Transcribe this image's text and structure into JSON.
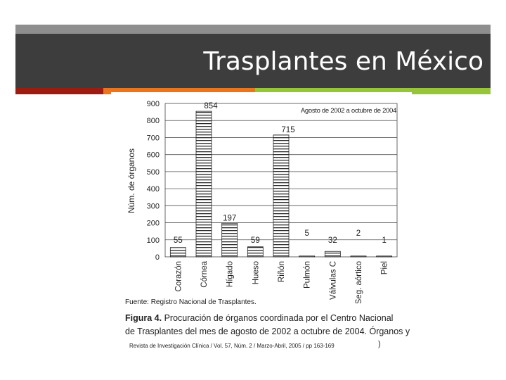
{
  "slide": {
    "title": "Trasplantes en México",
    "stripe_colors": [
      "#9b1c12",
      "#e8751f",
      "#97c43b",
      "#97c43b"
    ],
    "bar_color": "#3d3d3d"
  },
  "figure": {
    "source": "Fuente: Registro Nacional de Trasplantes.",
    "caption_label": "Figura 4.",
    "caption_line1": " Procuración de órganos coordinada por el Centro Nacional",
    "caption_line2": "de Trasplantes del mes de agosto de 2002 a octubre de 2004. Órganos y",
    "citation": "Revista de Investigación Clínica  /  Vol. 57, Núm. 2  /  Marzo-Abril, 2005  /  pp 163-169",
    "citation_tail": ")"
  },
  "chart_data": {
    "type": "bar",
    "annotation": "Agosto de 2002 a octubre de 2004",
    "ylabel": "Núm. de órganos",
    "ylim": [
      0,
      900
    ],
    "yticks": [
      0,
      100,
      200,
      300,
      400,
      500,
      600,
      700,
      800,
      900
    ],
    "grid": true,
    "categories": [
      "Corazón",
      "Córnea",
      "Hígado",
      "Hueso",
      "Riñón",
      "Pulmón",
      "Válvulas C",
      "Seg. aórtico",
      "Piel"
    ],
    "values": [
      55,
      854,
      197,
      59,
      715,
      5,
      32,
      2,
      1
    ]
  }
}
